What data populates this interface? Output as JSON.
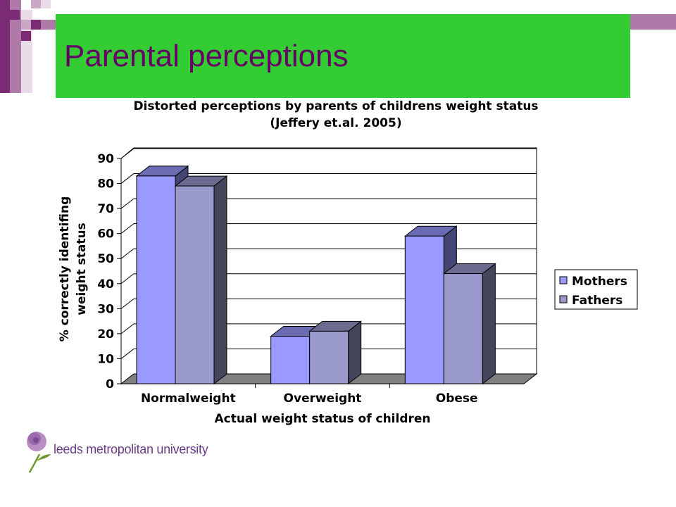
{
  "slide": {
    "title": "Parental perceptions",
    "logo_text": "leeds metropolitan university"
  },
  "colors": {
    "title_bar": "#33cc33",
    "title_text": "#660066",
    "mothers": "#9999ff",
    "fathers": "#9999cc",
    "floor": "#808080"
  },
  "chart_data": {
    "type": "bar",
    "title": "Distorted perceptions by parents of childrens weight status",
    "subtitle": "(Jeffery et.al. 2005)",
    "xlabel": "Actual weight status of children",
    "ylabel": [
      "% correctly identifing",
      "weight status"
    ],
    "categories": [
      "Normalweight",
      "Overweight",
      "Obese"
    ],
    "series": [
      {
        "name": "Mothers",
        "values": [
          83,
          19,
          59
        ],
        "color": "#9999ff"
      },
      {
        "name": "Fathers",
        "values": [
          79,
          21,
          44
        ],
        "color": "#9999cc"
      }
    ],
    "ylim": [
      0,
      90
    ],
    "yticks": [
      "0",
      "10",
      "20",
      "30",
      "40",
      "50",
      "60",
      "70",
      "80",
      "90"
    ],
    "grid": true,
    "legend": "right",
    "style": "3d-column"
  }
}
